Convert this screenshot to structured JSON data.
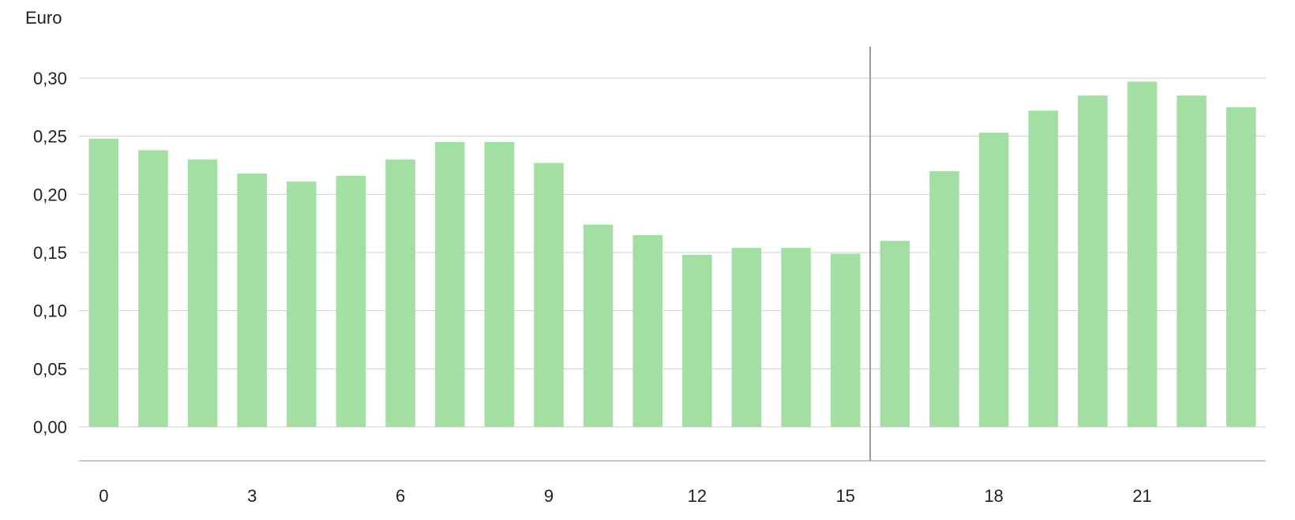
{
  "chart_data": {
    "type": "bar",
    "ylabel": "Euro",
    "ylim": [
      0,
      0.3
    ],
    "y_ticks": [
      "0,00",
      "0,05",
      "0,10",
      "0,15",
      "0,20",
      "0,25",
      "0,30"
    ],
    "y_tick_values": [
      0,
      0.05,
      0.1,
      0.15,
      0.2,
      0.25,
      0.3
    ],
    "x_tick_labels": [
      "0",
      "3",
      "6",
      "9",
      "12",
      "15",
      "18",
      "21"
    ],
    "x_tick_values": [
      0,
      3,
      6,
      9,
      12,
      15,
      18,
      21
    ],
    "categories": [
      0,
      1,
      2,
      3,
      4,
      5,
      6,
      7,
      8,
      9,
      10,
      11,
      12,
      13,
      14,
      15,
      16,
      17,
      18,
      19,
      20,
      21,
      22,
      23
    ],
    "values": [
      0.248,
      0.238,
      0.23,
      0.218,
      0.211,
      0.216,
      0.23,
      0.245,
      0.245,
      0.227,
      0.174,
      0.165,
      0.148,
      0.154,
      0.154,
      0.149,
      0.16,
      0.22,
      0.253,
      0.272,
      0.285,
      0.297,
      0.285,
      0.275
    ],
    "marker_x": 16,
    "grid": true,
    "colors": {
      "bar": "#a3dfa3",
      "grid": "#d0d0d0",
      "axis": "#c8c8c8",
      "marker": "#9a9a9a",
      "text": "#222222"
    }
  }
}
